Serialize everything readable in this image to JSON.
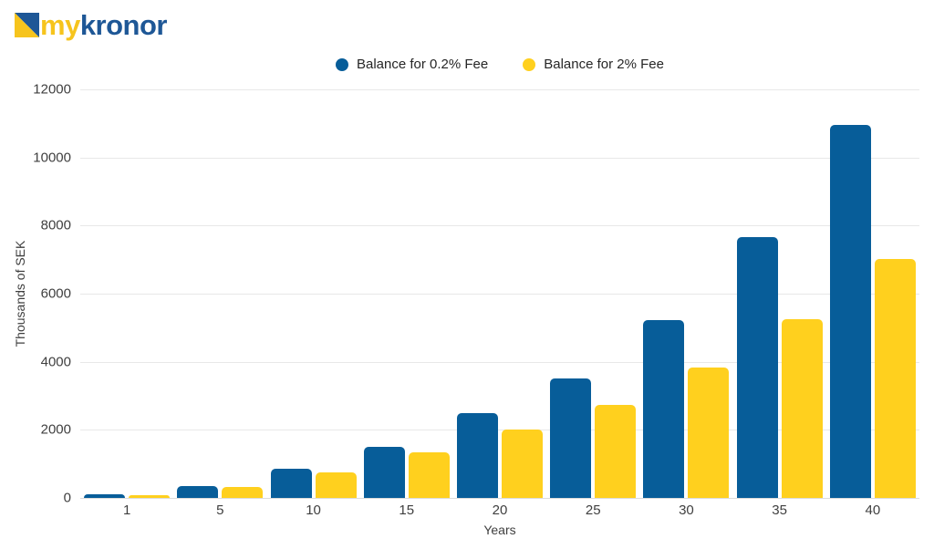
{
  "logo": {
    "text_primary": "my",
    "text_secondary": "kronor",
    "primary_color": "#f6c41d",
    "secondary_color": "#1e5796",
    "icon": "diagonal-split-square-icon"
  },
  "legend": {
    "items": [
      {
        "label": "Balance for 0.2% Fee",
        "color": "#075d99"
      },
      {
        "label": "Balance for 2% Fee",
        "color": "#ffd01e"
      }
    ]
  },
  "chart_data": {
    "type": "bar",
    "title": "",
    "categories": [
      "1",
      "5",
      "10",
      "15",
      "20",
      "25",
      "30",
      "35",
      "40"
    ],
    "series": [
      {
        "name": "Balance for 0.2% Fee",
        "color": "#075d99",
        "values": [
          100,
          350,
          850,
          1500,
          2480,
          3500,
          5230,
          7650,
          10960
        ]
      },
      {
        "name": "Balance for 2% Fee",
        "color": "#ffd01e",
        "values": [
          90,
          330,
          760,
          1330,
          2020,
          2730,
          3840,
          5250,
          7010
        ]
      }
    ],
    "xlabel": "Years",
    "ylabel": "Thousands of SEK",
    "ylim": [
      0,
      12000
    ],
    "yticks": [
      0,
      2000,
      4000,
      6000,
      8000,
      10000,
      12000
    ],
    "grid": true,
    "legend_position": "top-center"
  }
}
